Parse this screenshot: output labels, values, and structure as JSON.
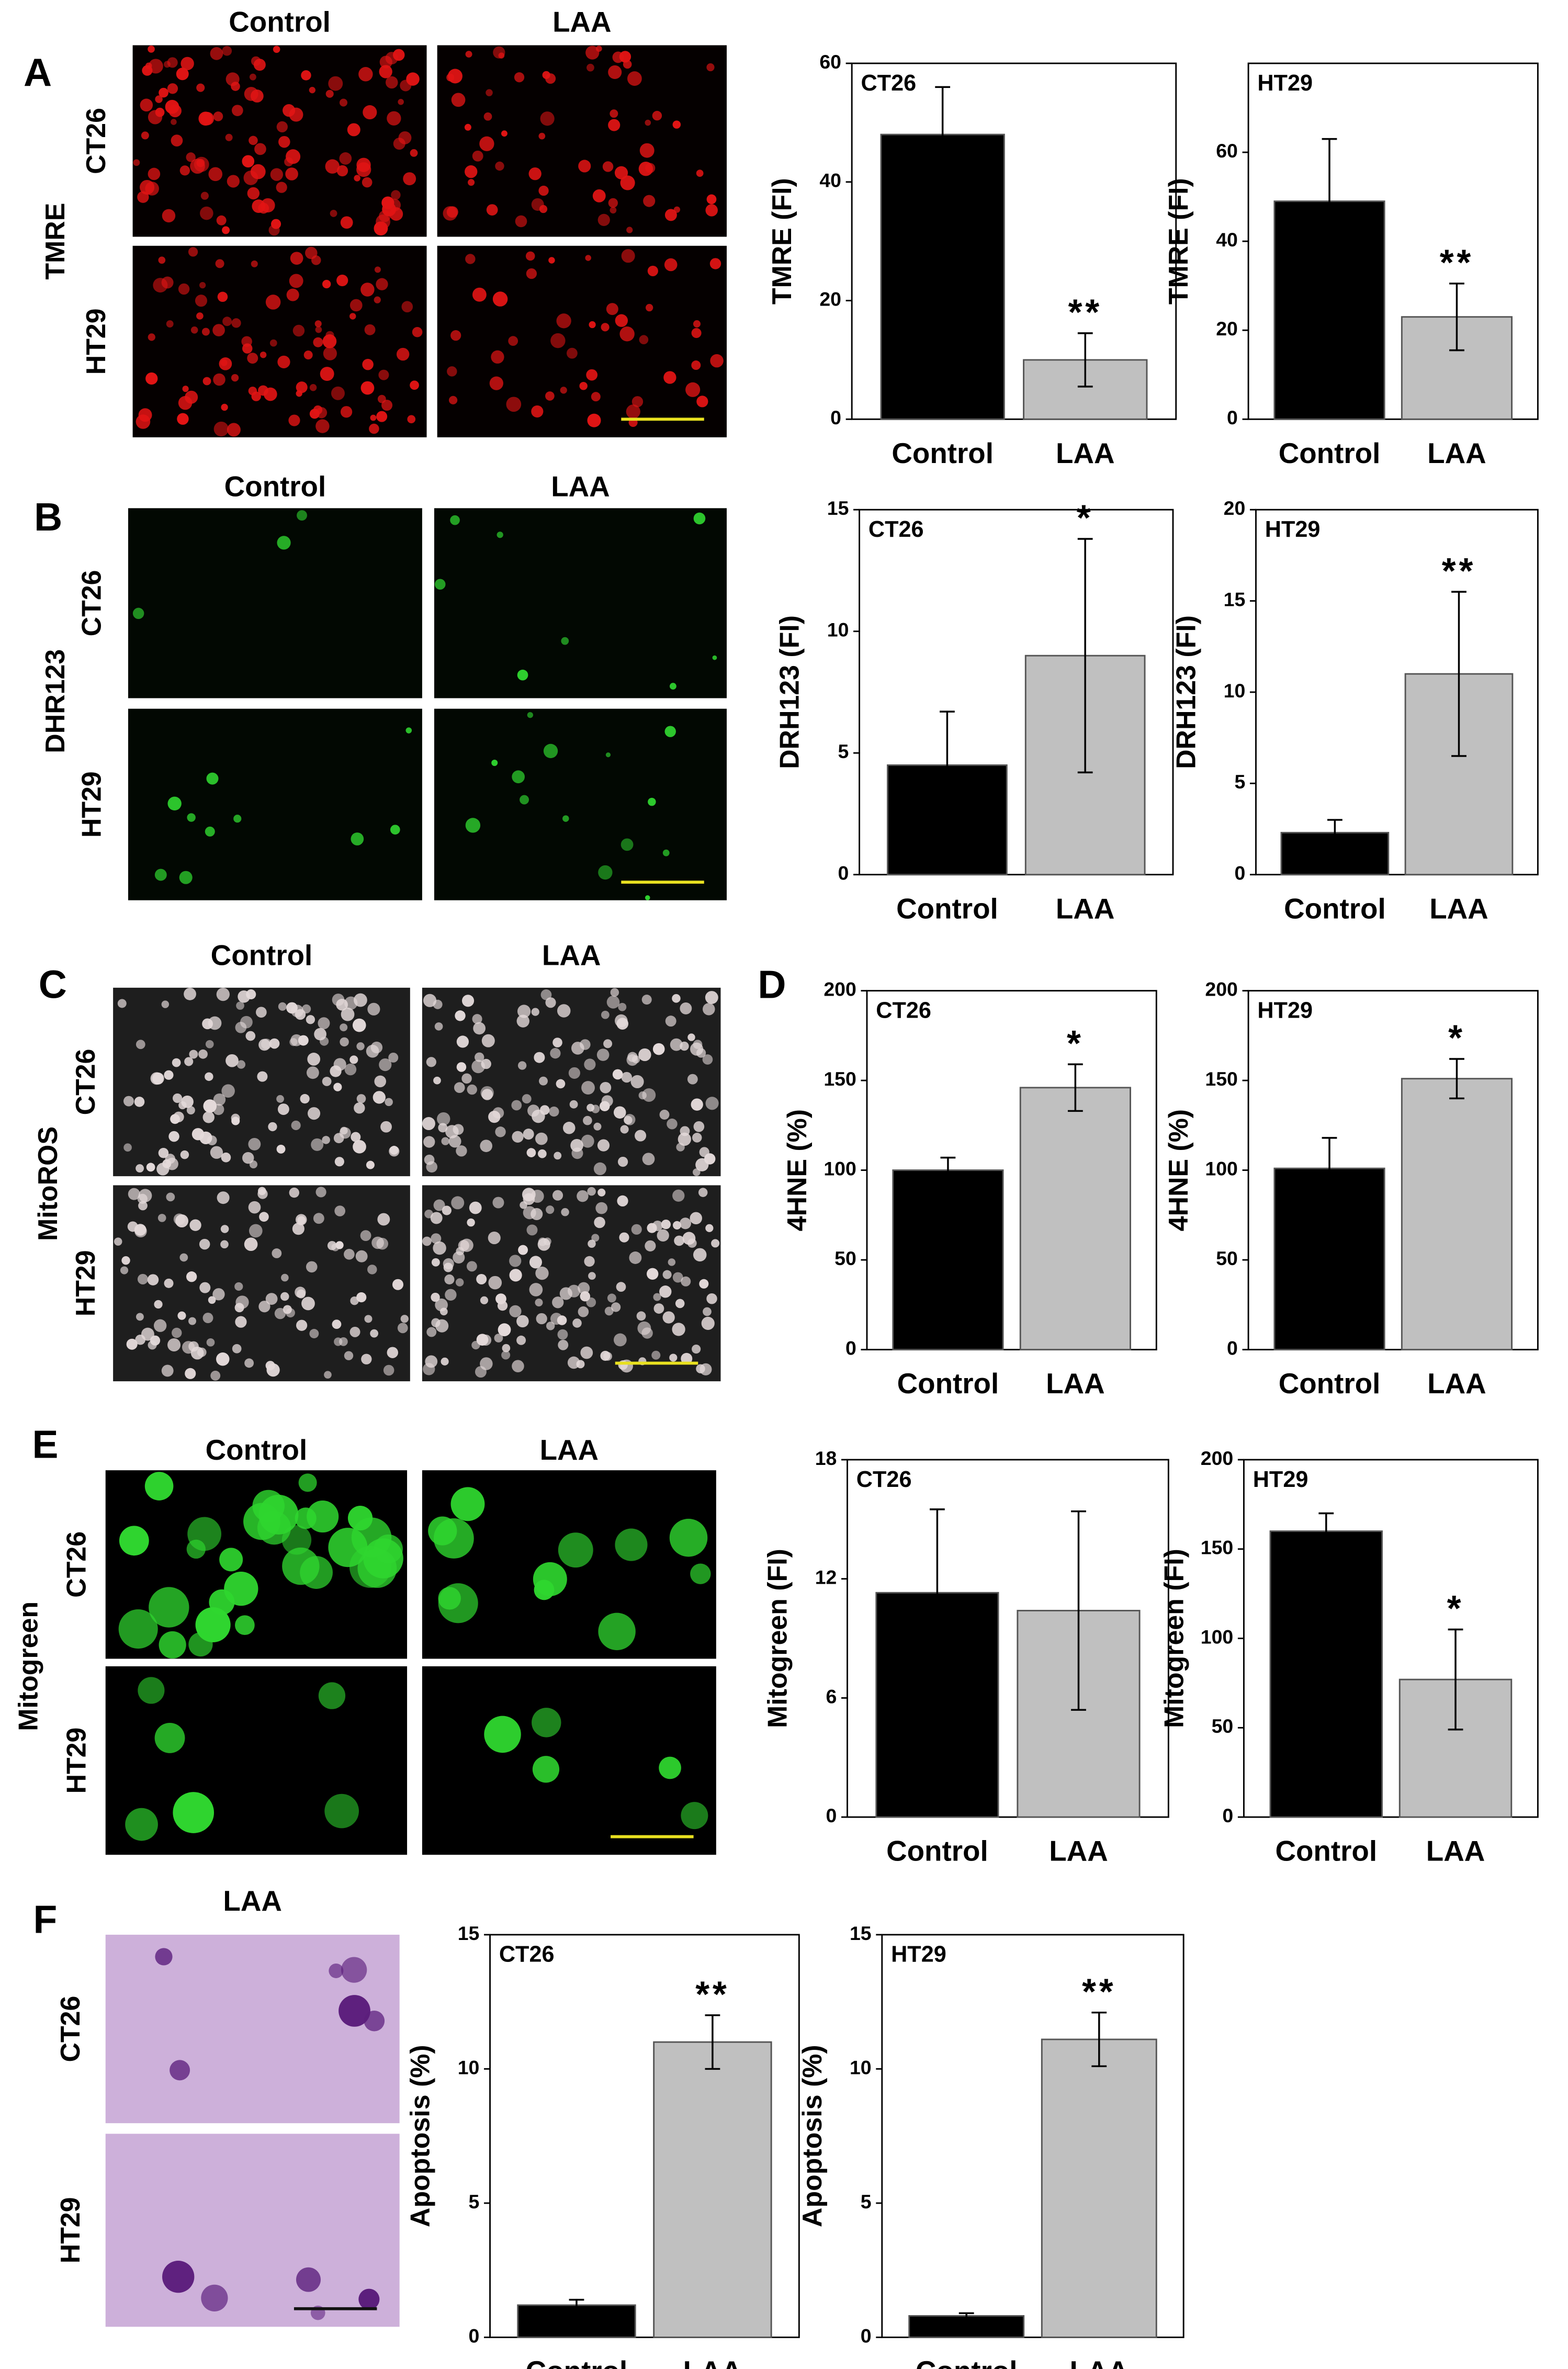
{
  "figure": {
    "rows": [
      {
        "letter": "A",
        "stain": "TMRE",
        "columns": [
          "Control",
          "LAA"
        ],
        "cell_lines": [
          "CT26",
          "HT29"
        ],
        "background": "#050000",
        "cell_color": "#e21414",
        "scale_color": "#e8e020"
      },
      {
        "letter": "B",
        "stain": "DHR123",
        "columns": [
          "Control",
          "LAA"
        ],
        "cell_lines": [
          "CT26",
          "HT29"
        ],
        "background": "#020802",
        "cell_color": "#2fd12f",
        "scale_color": "#e8e020"
      },
      {
        "letter": "C",
        "stain": "MitoROS",
        "columns": [
          "Control",
          "LAA"
        ],
        "cell_lines": [
          "CT26",
          "HT29"
        ],
        "background": "#1e1e1e",
        "cell_color": "#e4dada",
        "scale_color": "#e8e020"
      },
      {
        "letter": "D"
      },
      {
        "letter": "E",
        "stain": "Mitogreen",
        "columns": [
          "Control",
          "LAA"
        ],
        "cell_lines": [
          "CT26",
          "HT29"
        ],
        "background": "#000000",
        "cell_color": "#2fd62f",
        "scale_color": "#e8e020"
      },
      {
        "letter": "F",
        "columns": [
          "LAA"
        ],
        "cell_lines": [
          "CT26",
          "HT29"
        ],
        "background": "#cdb0da",
        "cell_color": "#5b1d7c",
        "scale_color": "#111111"
      }
    ]
  },
  "chart_data": [
    {
      "type": "bar",
      "label": "CT26",
      "ylabel": "TMRE (FI)",
      "categories": [
        "Control",
        "LAA"
      ],
      "values": [
        48,
        10
      ],
      "errors": [
        8,
        4.5
      ],
      "annotations": [
        null,
        "**"
      ],
      "colors": [
        "#000000",
        "#c0c0c0"
      ],
      "ylim": [
        0,
        60
      ],
      "yticks": [
        0,
        20,
        40,
        60
      ]
    },
    {
      "type": "bar",
      "label": "HT29",
      "ylabel": "TMRE (FI)",
      "categories": [
        "Control",
        "LAA"
      ],
      "values": [
        49,
        23
      ],
      "errors": [
        14,
        7.5
      ],
      "annotations": [
        null,
        "**"
      ],
      "colors": [
        "#000000",
        "#c0c0c0"
      ],
      "ylim": [
        0,
        80
      ],
      "yticks": [
        0,
        20,
        40,
        60
      ]
    },
    {
      "type": "bar",
      "label": "CT26",
      "ylabel": "DRH123 (FI)",
      "categories": [
        "Control",
        "LAA"
      ],
      "values": [
        4.5,
        9
      ],
      "errors": [
        2.2,
        4.8
      ],
      "annotations": [
        null,
        "*"
      ],
      "colors": [
        "#000000",
        "#c0c0c0"
      ],
      "ylim": [
        0,
        15
      ],
      "yticks": [
        0,
        5,
        10,
        15
      ]
    },
    {
      "type": "bar",
      "label": "HT29",
      "ylabel": "DRH123 (FI)",
      "categories": [
        "Control",
        "LAA"
      ],
      "values": [
        2.3,
        11
      ],
      "errors": [
        0.7,
        4.5
      ],
      "annotations": [
        null,
        "**"
      ],
      "colors": [
        "#000000",
        "#c0c0c0"
      ],
      "ylim": [
        0,
        20
      ],
      "yticks": [
        0,
        5,
        10,
        15,
        20
      ]
    },
    {
      "type": "bar",
      "label": "CT26",
      "ylabel": "4HNE (%)",
      "categories": [
        "Control",
        "LAA"
      ],
      "values": [
        100,
        146
      ],
      "errors": [
        7,
        13
      ],
      "annotations": [
        null,
        "*"
      ],
      "colors": [
        "#000000",
        "#c0c0c0"
      ],
      "ylim": [
        0,
        200
      ],
      "yticks": [
        0,
        50,
        100,
        150,
        200
      ]
    },
    {
      "type": "bar",
      "label": "HT29",
      "ylabel": "4HNE (%)",
      "categories": [
        "Control",
        "LAA"
      ],
      "values": [
        101,
        151
      ],
      "errors": [
        17,
        11
      ],
      "annotations": [
        null,
        "*"
      ],
      "colors": [
        "#000000",
        "#c0c0c0"
      ],
      "ylim": [
        0,
        200
      ],
      "yticks": [
        0,
        50,
        100,
        150,
        200
      ]
    },
    {
      "type": "bar",
      "label": "CT26",
      "ylabel": "Mitogreen (FI)",
      "categories": [
        "Control",
        "LAA"
      ],
      "values": [
        11.3,
        10.4
      ],
      "errors": [
        4.2,
        5
      ],
      "annotations": [
        null,
        null
      ],
      "colors": [
        "#000000",
        "#c0c0c0"
      ],
      "ylim": [
        0,
        18
      ],
      "yticks": [
        0,
        6,
        12,
        18
      ]
    },
    {
      "type": "bar",
      "label": "HT29",
      "ylabel": "Mitogreen (FI)",
      "categories": [
        "Control",
        "LAA"
      ],
      "values": [
        160,
        77
      ],
      "errors": [
        10,
        28
      ],
      "annotations": [
        null,
        "*"
      ],
      "colors": [
        "#000000",
        "#c0c0c0"
      ],
      "ylim": [
        0,
        200
      ],
      "yticks": [
        0,
        50,
        100,
        150,
        200
      ]
    },
    {
      "type": "bar",
      "label": "CT26",
      "ylabel": "Apoptosis (%)",
      "categories": [
        "Control",
        "LAA"
      ],
      "values": [
        1.2,
        11
      ],
      "errors": [
        0.2,
        1
      ],
      "annotations": [
        null,
        "**"
      ],
      "colors": [
        "#000000",
        "#c0c0c0"
      ],
      "ylim": [
        0,
        15
      ],
      "yticks": [
        0,
        5,
        10,
        15
      ]
    },
    {
      "type": "bar",
      "label": "HT29",
      "ylabel": "Apoptosis (%)",
      "categories": [
        "Control",
        "LAA"
      ],
      "values": [
        0.8,
        11.1
      ],
      "errors": [
        0.1,
        1
      ],
      "annotations": [
        null,
        "**"
      ],
      "colors": [
        "#000000",
        "#c0c0c0"
      ],
      "ylim": [
        0,
        15
      ],
      "yticks": [
        0,
        5,
        10,
        15
      ]
    }
  ]
}
